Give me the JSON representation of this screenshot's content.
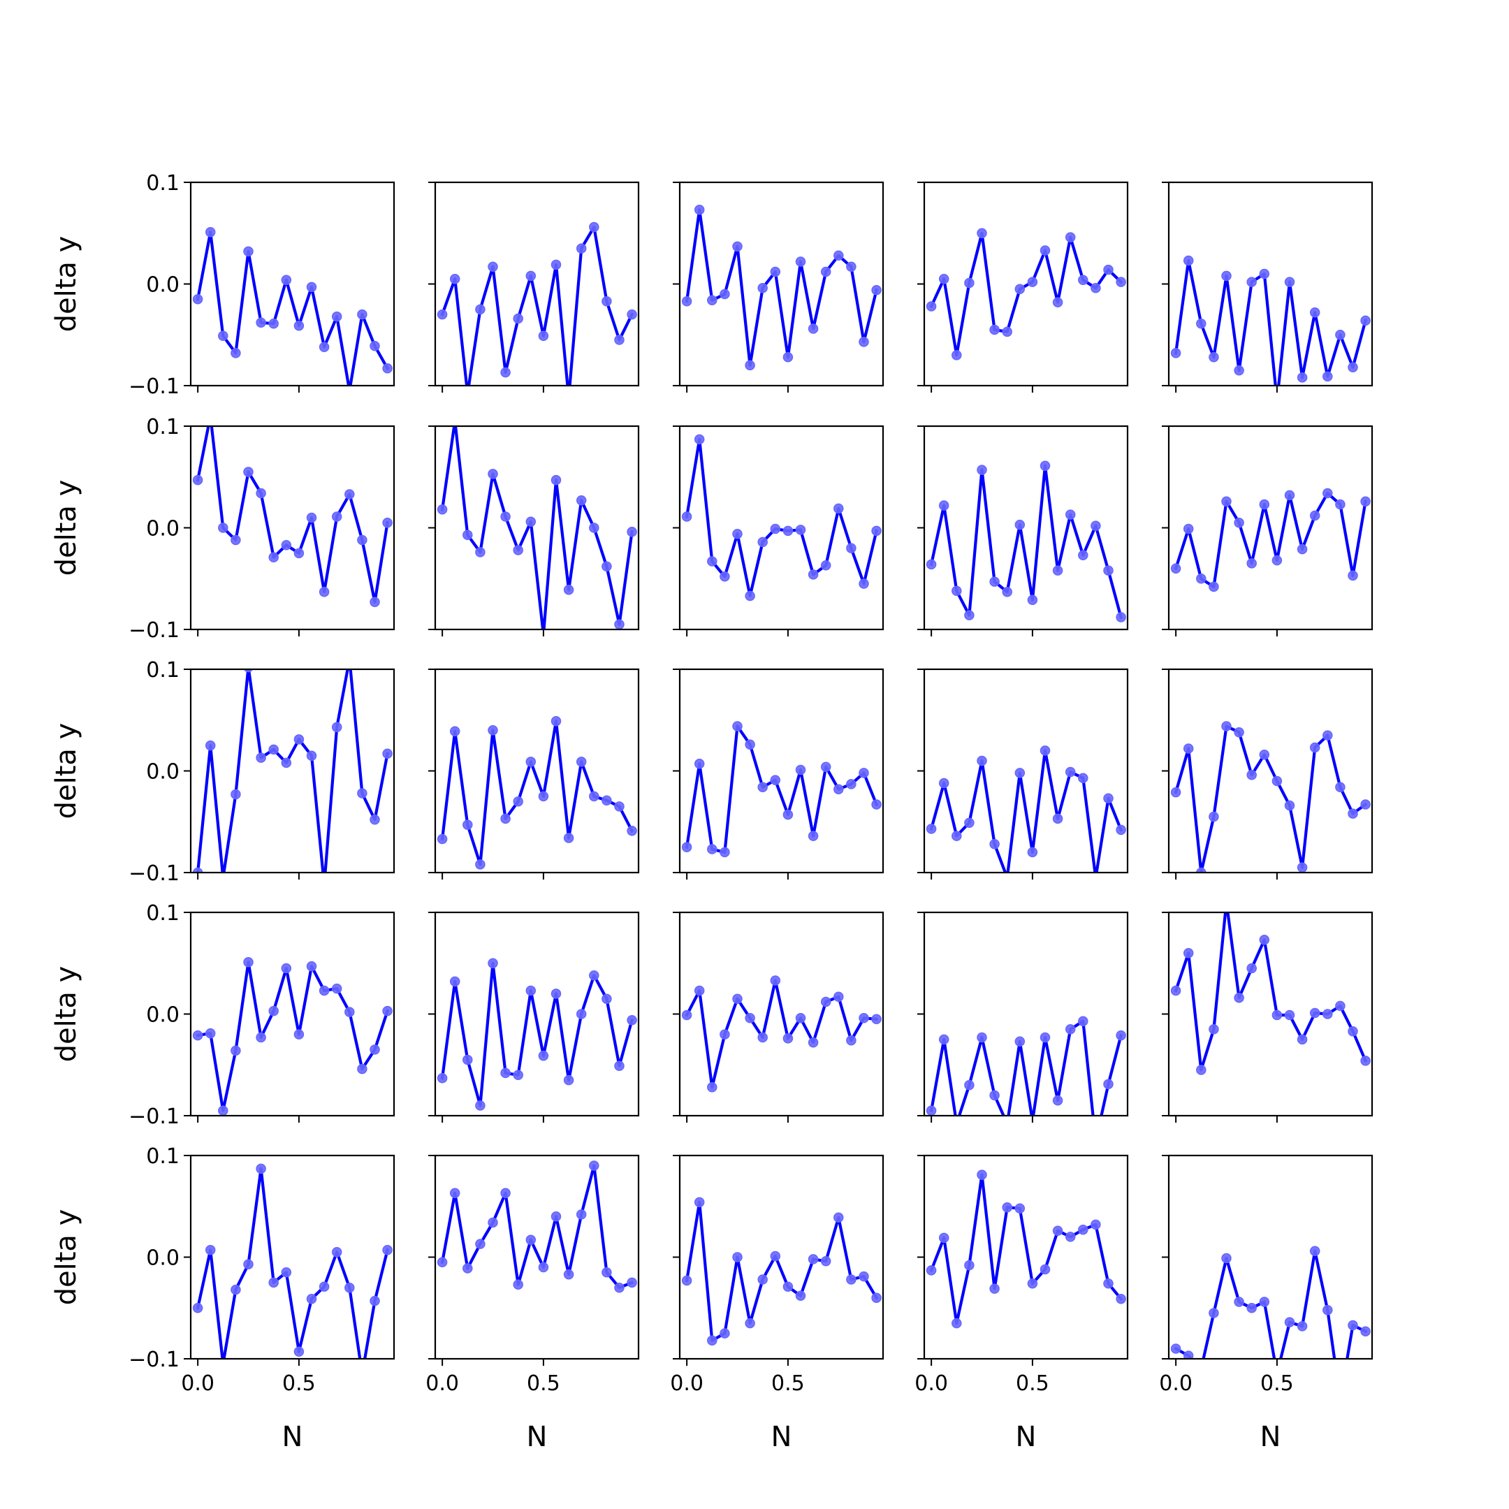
{
  "chart_data": {
    "type": "line",
    "layout": "5x5 grid of small multiples",
    "xlabel": "N",
    "ylabel": "delta y",
    "xlim": [
      -0.035,
      0.97
    ],
    "ylim": [
      -0.1,
      0.1
    ],
    "x_ticks": [
      "0.0",
      "0.5"
    ],
    "x_tick_values": [
      0.0,
      0.5
    ],
    "y_ticks": [
      "0.1",
      "0.0",
      "−0.1"
    ],
    "y_tick_values": [
      0.1,
      0.0,
      -0.1
    ],
    "sharex": true,
    "sharey": true,
    "grid": false,
    "legend": "none",
    "line_color": "#0000ff",
    "marker_color": "#6666ff",
    "x": [
      0.0,
      0.0625,
      0.125,
      0.1875,
      0.25,
      0.3125,
      0.375,
      0.4375,
      0.5,
      0.5625,
      0.625,
      0.6875,
      0.75,
      0.8125,
      0.875,
      0.9375
    ],
    "panels": [
      [
        [
          -0.015,
          0.051,
          -0.051,
          -0.068,
          0.032,
          -0.038,
          -0.039,
          0.004,
          -0.041,
          -0.003,
          -0.062,
          -0.032,
          -0.105,
          -0.03,
          -0.061,
          -0.083
        ],
        [
          -0.03,
          0.005,
          -0.108,
          -0.025,
          0.017,
          -0.087,
          -0.034,
          0.008,
          -0.051,
          0.019,
          -0.112,
          0.035,
          0.056,
          -0.017,
          -0.055,
          -0.03
        ],
        [
          -0.017,
          0.073,
          -0.016,
          -0.01,
          0.037,
          -0.08,
          -0.004,
          0.012,
          -0.072,
          0.022,
          -0.044,
          0.012,
          0.028,
          0.017,
          -0.057,
          -0.006
        ],
        [
          -0.022,
          0.005,
          -0.07,
          0.001,
          0.05,
          -0.045,
          -0.047,
          -0.005,
          0.002,
          0.033,
          -0.018,
          0.046,
          0.004,
          -0.004,
          0.014,
          0.002
        ],
        [
          -0.068,
          0.023,
          -0.039,
          -0.072,
          0.008,
          -0.085,
          0.002,
          0.01,
          -0.115,
          0.002,
          -0.092,
          -0.028,
          -0.091,
          -0.05,
          -0.082,
          -0.036
        ]
      ],
      [
        [
          0.047,
          0.11,
          0.0,
          -0.012,
          0.055,
          0.034,
          -0.029,
          -0.017,
          -0.025,
          0.01,
          -0.063,
          0.011,
          0.033,
          -0.012,
          -0.073,
          0.005
        ],
        [
          0.018,
          0.105,
          -0.007,
          -0.024,
          0.053,
          0.011,
          -0.022,
          0.006,
          -0.105,
          0.047,
          -0.061,
          0.027,
          0.0,
          -0.038,
          -0.095,
          -0.004
        ],
        [
          0.011,
          0.087,
          -0.033,
          -0.048,
          -0.006,
          -0.067,
          -0.014,
          -0.001,
          -0.003,
          -0.002,
          -0.046,
          -0.037,
          0.019,
          -0.02,
          -0.055,
          -0.003
        ],
        [
          -0.036,
          0.022,
          -0.062,
          -0.086,
          0.057,
          -0.053,
          -0.063,
          0.003,
          -0.071,
          0.061,
          -0.042,
          0.013,
          -0.027,
          0.002,
          -0.042,
          -0.088
        ],
        [
          -0.04,
          -0.001,
          -0.05,
          -0.058,
          0.026,
          0.005,
          -0.035,
          0.023,
          -0.032,
          0.032,
          -0.021,
          0.012,
          0.034,
          0.023,
          -0.047,
          0.026
        ]
      ],
      [
        [
          -0.1,
          0.025,
          -0.105,
          -0.023,
          0.102,
          0.013,
          0.021,
          0.008,
          0.031,
          0.015,
          -0.112,
          0.043,
          0.11,
          -0.022,
          -0.048,
          0.017
        ],
        [
          -0.067,
          0.039,
          -0.053,
          -0.092,
          0.04,
          -0.047,
          -0.03,
          0.009,
          -0.025,
          0.049,
          -0.066,
          0.009,
          -0.025,
          -0.029,
          -0.035,
          -0.059
        ],
        [
          -0.075,
          0.007,
          -0.077,
          -0.08,
          0.044,
          0.026,
          -0.016,
          -0.009,
          -0.043,
          0.001,
          -0.064,
          0.004,
          -0.018,
          -0.013,
          -0.002,
          -0.033
        ],
        [
          -0.057,
          -0.012,
          -0.064,
          -0.051,
          0.01,
          -0.072,
          -0.105,
          -0.002,
          -0.08,
          0.02,
          -0.047,
          -0.001,
          -0.007,
          -0.105,
          -0.027,
          -0.058
        ],
        [
          -0.021,
          0.022,
          -0.1,
          -0.045,
          0.044,
          0.038,
          -0.004,
          0.016,
          -0.01,
          -0.034,
          -0.095,
          0.023,
          0.035,
          -0.016,
          -0.042,
          -0.033
        ]
      ],
      [
        [
          -0.021,
          -0.019,
          -0.095,
          -0.036,
          0.051,
          -0.023,
          0.003,
          0.045,
          -0.02,
          0.047,
          0.023,
          0.025,
          0.002,
          -0.054,
          -0.035,
          0.003
        ],
        [
          -0.063,
          0.032,
          -0.045,
          -0.09,
          0.05,
          -0.058,
          -0.06,
          0.023,
          -0.041,
          0.02,
          -0.065,
          0.0,
          0.038,
          0.015,
          -0.051,
          -0.006
        ],
        [
          -0.001,
          0.023,
          -0.072,
          -0.02,
          0.015,
          -0.004,
          -0.023,
          0.033,
          -0.024,
          -0.004,
          -0.028,
          0.012,
          0.017,
          -0.026,
          -0.004,
          -0.005
        ],
        [
          -0.095,
          -0.025,
          -0.108,
          -0.07,
          -0.023,
          -0.08,
          -0.108,
          -0.027,
          -0.105,
          -0.023,
          -0.085,
          -0.015,
          -0.007,
          -0.125,
          -0.069,
          -0.021
        ],
        [
          0.023,
          0.06,
          -0.055,
          -0.015,
          0.11,
          0.016,
          0.045,
          0.073,
          -0.001,
          -0.001,
          -0.025,
          0.001,
          0.0,
          0.008,
          -0.017,
          -0.046
        ]
      ],
      [
        [
          -0.05,
          0.007,
          -0.105,
          -0.032,
          -0.007,
          0.087,
          -0.025,
          -0.015,
          -0.093,
          -0.041,
          -0.029,
          0.005,
          -0.03,
          -0.115,
          -0.043,
          0.007
        ],
        [
          -0.005,
          0.063,
          -0.011,
          0.013,
          0.034,
          0.063,
          -0.027,
          0.017,
          -0.01,
          0.04,
          -0.017,
          0.042,
          0.09,
          -0.015,
          -0.03,
          -0.025
        ],
        [
          -0.023,
          0.054,
          -0.082,
          -0.075,
          0.0,
          -0.065,
          -0.022,
          0.001,
          -0.029,
          -0.038,
          -0.002,
          -0.004,
          0.039,
          -0.022,
          -0.019,
          -0.04
        ],
        [
          -0.013,
          0.019,
          -0.065,
          -0.008,
          0.081,
          -0.031,
          0.049,
          0.048,
          -0.026,
          -0.012,
          0.026,
          0.02,
          0.027,
          0.032,
          -0.026,
          -0.041
        ],
        [
          -0.09,
          -0.097,
          -0.11,
          -0.055,
          -0.001,
          -0.044,
          -0.05,
          -0.044,
          -0.115,
          -0.064,
          -0.068,
          0.006,
          -0.052,
          -0.14,
          -0.067,
          -0.073
        ]
      ]
    ]
  }
}
